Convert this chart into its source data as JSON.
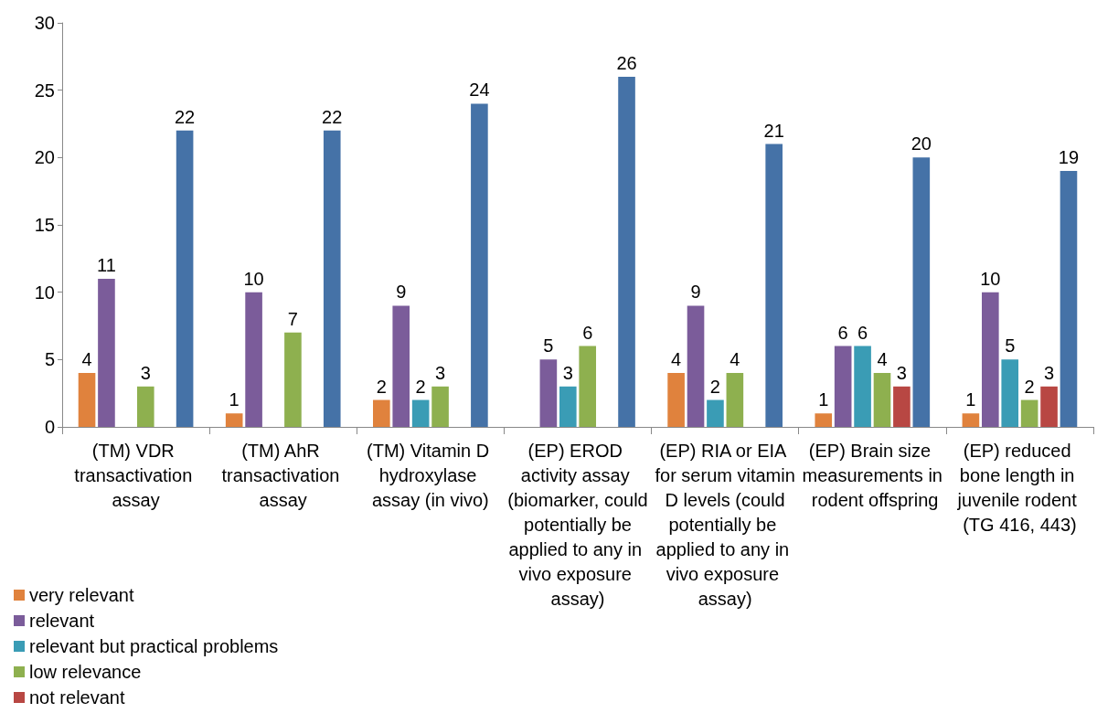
{
  "chart_data": {
    "type": "bar",
    "categories": [
      "(TM) VDR transactivation assay",
      "(TM) AhR transactivation assay",
      "(TM) Vitamin D hydroxylase assay (in vivo)",
      "(EP) EROD activity assay (biomarker, could potentially be applied to any in vivo exposure assay)",
      "(EP) RIA or EIA for serum vitamin D levels (could potentially be applied to any in vivo exposure assay)",
      "(EP) Brain size measurements in rodent offspring",
      "(EP) reduced bone length in juvenile rodent (TG 416, 443)"
    ],
    "series": [
      {
        "name": "very relevant",
        "color": "#e0823d",
        "values": [
          4,
          1,
          2,
          null,
          4,
          1,
          1
        ]
      },
      {
        "name": "relevant",
        "color": "#7b5c9a",
        "values": [
          11,
          10,
          9,
          5,
          9,
          6,
          10
        ]
      },
      {
        "name": "relevant but practical problems",
        "color": "#3a9cb5",
        "values": [
          null,
          null,
          2,
          3,
          2,
          6,
          5
        ]
      },
      {
        "name": "low relevance",
        "color": "#8eb04f",
        "values": [
          3,
          7,
          3,
          6,
          4,
          4,
          2
        ]
      },
      {
        "name": "not relevant",
        "color": "#b84743",
        "values": [
          null,
          null,
          null,
          null,
          null,
          3,
          3
        ]
      },
      {
        "color": "#4572a7",
        "values": [
          22,
          22,
          24,
          26,
          21,
          20,
          19
        ]
      }
    ],
    "ylim": [
      0,
      30
    ],
    "yticks": [
      0,
      5,
      10,
      15,
      20,
      25,
      30
    ],
    "data_labels": true,
    "grid": false,
    "legend": "bottom left"
  }
}
